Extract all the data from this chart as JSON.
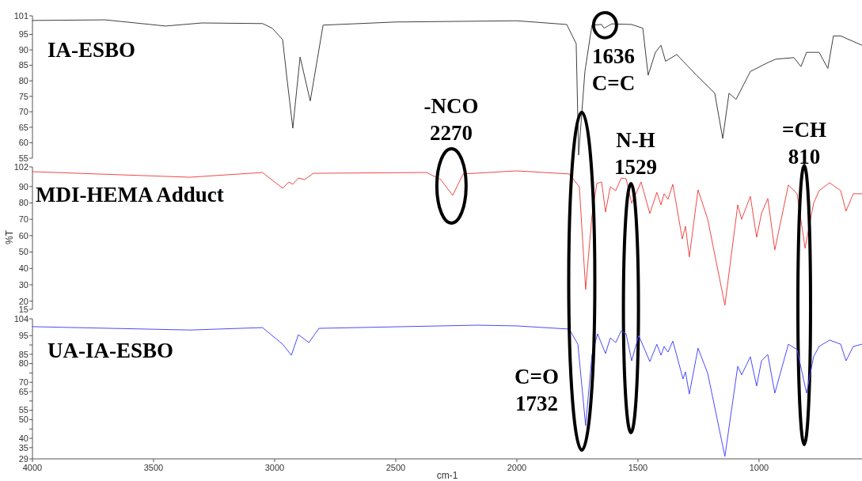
{
  "chart_data": [
    {
      "type": "line",
      "tick_labels": "y",
      "xlim": [
        4000,
        575
      ],
      "ylim": [
        55,
        101
      ],
      "yticks": [
        101,
        95,
        90,
        85,
        80,
        75,
        70,
        65,
        60,
        55
      ],
      "annotations": [
        {
          "text": "1636\nC=C",
          "x": 1636,
          "y": 97
        }
      ],
      "series": [
        {
          "name": "IA-ESBO",
          "color": "#404040",
          "x": [
            4000,
            3700,
            3450,
            3300,
            3050,
            3010,
            2967,
            2950,
            2925,
            2895,
            2853,
            2800,
            2500,
            2000,
            1794,
            1755,
            1745,
            1719,
            1690,
            1650,
            1640,
            1608,
            1526,
            1480,
            1458,
            1428,
            1405,
            1386,
            1340,
            1258,
            1183,
            1150,
            1124,
            1095,
            1036,
            961,
            931,
            856,
            827,
            804,
            752,
            716,
            693,
            663,
            575
          ],
          "values": [
            99.5,
            99.7,
            97.7,
            98.7,
            98.5,
            97,
            93.3,
            81.3,
            64.7,
            87.7,
            73.5,
            98,
            99,
            99.4,
            98.2,
            92,
            56,
            83,
            98,
            98.2,
            97,
            98.4,
            98.2,
            97,
            81.8,
            89.2,
            91.5,
            86.3,
            88.5,
            81.8,
            76,
            61.4,
            76,
            74,
            83,
            86,
            87,
            87.5,
            84.6,
            89.2,
            89.2,
            84,
            94.5,
            94.5,
            91.5
          ]
        }
      ]
    },
    {
      "type": "line",
      "tick_labels": "y",
      "xlim": [
        4000,
        575
      ],
      "ylim": [
        15,
        102
      ],
      "yticks": [
        102,
        90,
        80,
        70,
        60,
        50,
        40,
        30,
        20,
        15
      ],
      "ylabel": "%T",
      "annotations": [
        {
          "text": "-NCO\n2270",
          "x": 2270,
          "y": 84.6
        },
        {
          "text": "N-H\n1529",
          "x": 1529,
          "y": 79.8
        },
        "=CH\n810"
      ],
      "series": [
        {
          "name": "MDI-HEMA Adduct",
          "color": "#f04848",
          "x": [
            4000,
            3350,
            3050,
            2967,
            2941,
            2925,
            2902,
            2876,
            2840,
            2373,
            2314,
            2265,
            2222,
            2000,
            1784,
            1742,
            1716,
            1690,
            1670,
            1650,
            1634,
            1614,
            1592,
            1569,
            1549,
            1526,
            1487,
            1451,
            1422,
            1405,
            1392,
            1376,
            1356,
            1317,
            1304,
            1288,
            1252,
            1212,
            1141,
            1088,
            1072,
            1036,
            1010,
            990,
            964,
            935,
            879,
            843,
            810,
            775,
            752,
            709,
            663,
            641,
            611,
            575
          ],
          "values": [
            99.1,
            95.7,
            98.6,
            89,
            92.8,
            91.4,
            95.2,
            94.3,
            98.1,
            98.6,
            94.3,
            84.6,
            97.7,
            99.6,
            97.7,
            89.9,
            27.1,
            72,
            91.9,
            92.8,
            74.5,
            89.9,
            87.5,
            95.2,
            94.8,
            79.8,
            92.8,
            73.5,
            86.5,
            78.8,
            85.6,
            82.2,
            91.4,
            58,
            65.8,
            47,
            88,
            70,
            17.5,
            78.8,
            70,
            84,
            59,
            73.5,
            82.7,
            51.3,
            91,
            85.6,
            52.3,
            79.8,
            87.5,
            92.3,
            87.5,
            75,
            85.6,
            85.6
          ]
        }
      ]
    },
    {
      "type": "line",
      "xlim": [
        4000,
        575
      ],
      "ylim": [
        29,
        104
      ],
      "xticks": [
        4000,
        3500,
        3000,
        2500,
        2000,
        1500,
        1000
      ],
      "yticks": [
        104,
        95,
        {
          "value": 90,
          "label": null
        },
        85,
        80,
        {
          "value": 75,
          "label": null
        },
        70,
        65,
        {
          "value": 60,
          "label": null
        },
        55,
        50,
        {
          "value": 45,
          "label": null
        },
        40,
        35,
        29
      ],
      "xlabel": "cm-1",
      "annotations": [
        {
          "text": "C=O\n1732",
          "x": 1732,
          "y": 46.8
        }
      ],
      "series": [
        {
          "name": "UA-IA-ESBO",
          "color": "#4a4aff",
          "x": [
            4000,
            3350,
            3050,
            2967,
            2931,
            2902,
            2859,
            2817,
            2163,
            2000,
            1784,
            1748,
            1716,
            1690,
            1667,
            1634,
            1614,
            1592,
            1569,
            1549,
            1526,
            1497,
            1451,
            1422,
            1405,
            1392,
            1376,
            1356,
            1314,
            1304,
            1288,
            1252,
            1212,
            1141,
            1088,
            1072,
            1036,
            1010,
            990,
            964,
            935,
            879,
            843,
            804,
            775,
            752,
            709,
            663,
            641,
            611,
            575
          ],
          "values": [
            99.8,
            98,
            99.3,
            90.4,
            84.5,
            95.5,
            91.3,
            98.9,
            100.6,
            100.2,
            98.5,
            90.4,
            46.8,
            84.5,
            96,
            85.4,
            93.8,
            91.3,
            97.6,
            96,
            81.5,
            95.1,
            81.1,
            90.4,
            84.5,
            89.2,
            86.2,
            92.1,
            71.8,
            75.6,
            63.7,
            88.3,
            74.8,
            30.3,
            78.6,
            74,
            83.7,
            68,
            81.5,
            84.9,
            64.2,
            90.4,
            87.5,
            64.2,
            83.7,
            89.2,
            92.6,
            90.4,
            81.5,
            89.2,
            90.4
          ]
        }
      ]
    }
  ]
}
